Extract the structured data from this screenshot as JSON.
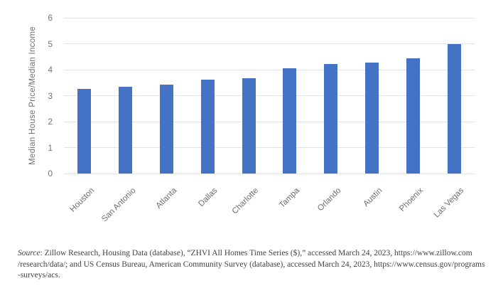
{
  "chart_data": {
    "type": "bar",
    "title": "",
    "xlabel": "",
    "ylabel": "Median House Price/Median Income",
    "categories": [
      "Houston",
      "San Antonio",
      "Atlanta",
      "Dallas",
      "Charlotte",
      "Tampa",
      "Orlando",
      "Austin",
      "Phoenix",
      "Las Vegas"
    ],
    "values": [
      3.27,
      3.35,
      3.42,
      3.63,
      3.68,
      4.06,
      4.23,
      4.28,
      4.45,
      5.0
    ],
    "ylim": [
      0,
      6
    ],
    "yticks": [
      0,
      1,
      2,
      3,
      4,
      5,
      6
    ],
    "bar_color": "#4472C4",
    "gridline_color": "#e2e2e2",
    "grid": true,
    "legend": "none",
    "x_label_rotation_deg": -45
  },
  "source_note": {
    "label": "Source",
    "line1_rest": ": Zillow Research, Housing Data (database), “ZHVI All Homes Time Series ($),” accessed March 24, 2023, https://www.zillow.com",
    "lines": [
      "/research/data/; and US Census Bureau, American Community Survey (database), accessed March 24, 2023, https://www.census.gov/programs",
      "-surveys/acs."
    ]
  },
  "colors": {
    "background": "#ffffff",
    "axis_text": "#757575",
    "category_text": "#6d6d6d",
    "source_text": "#3f4442"
  }
}
